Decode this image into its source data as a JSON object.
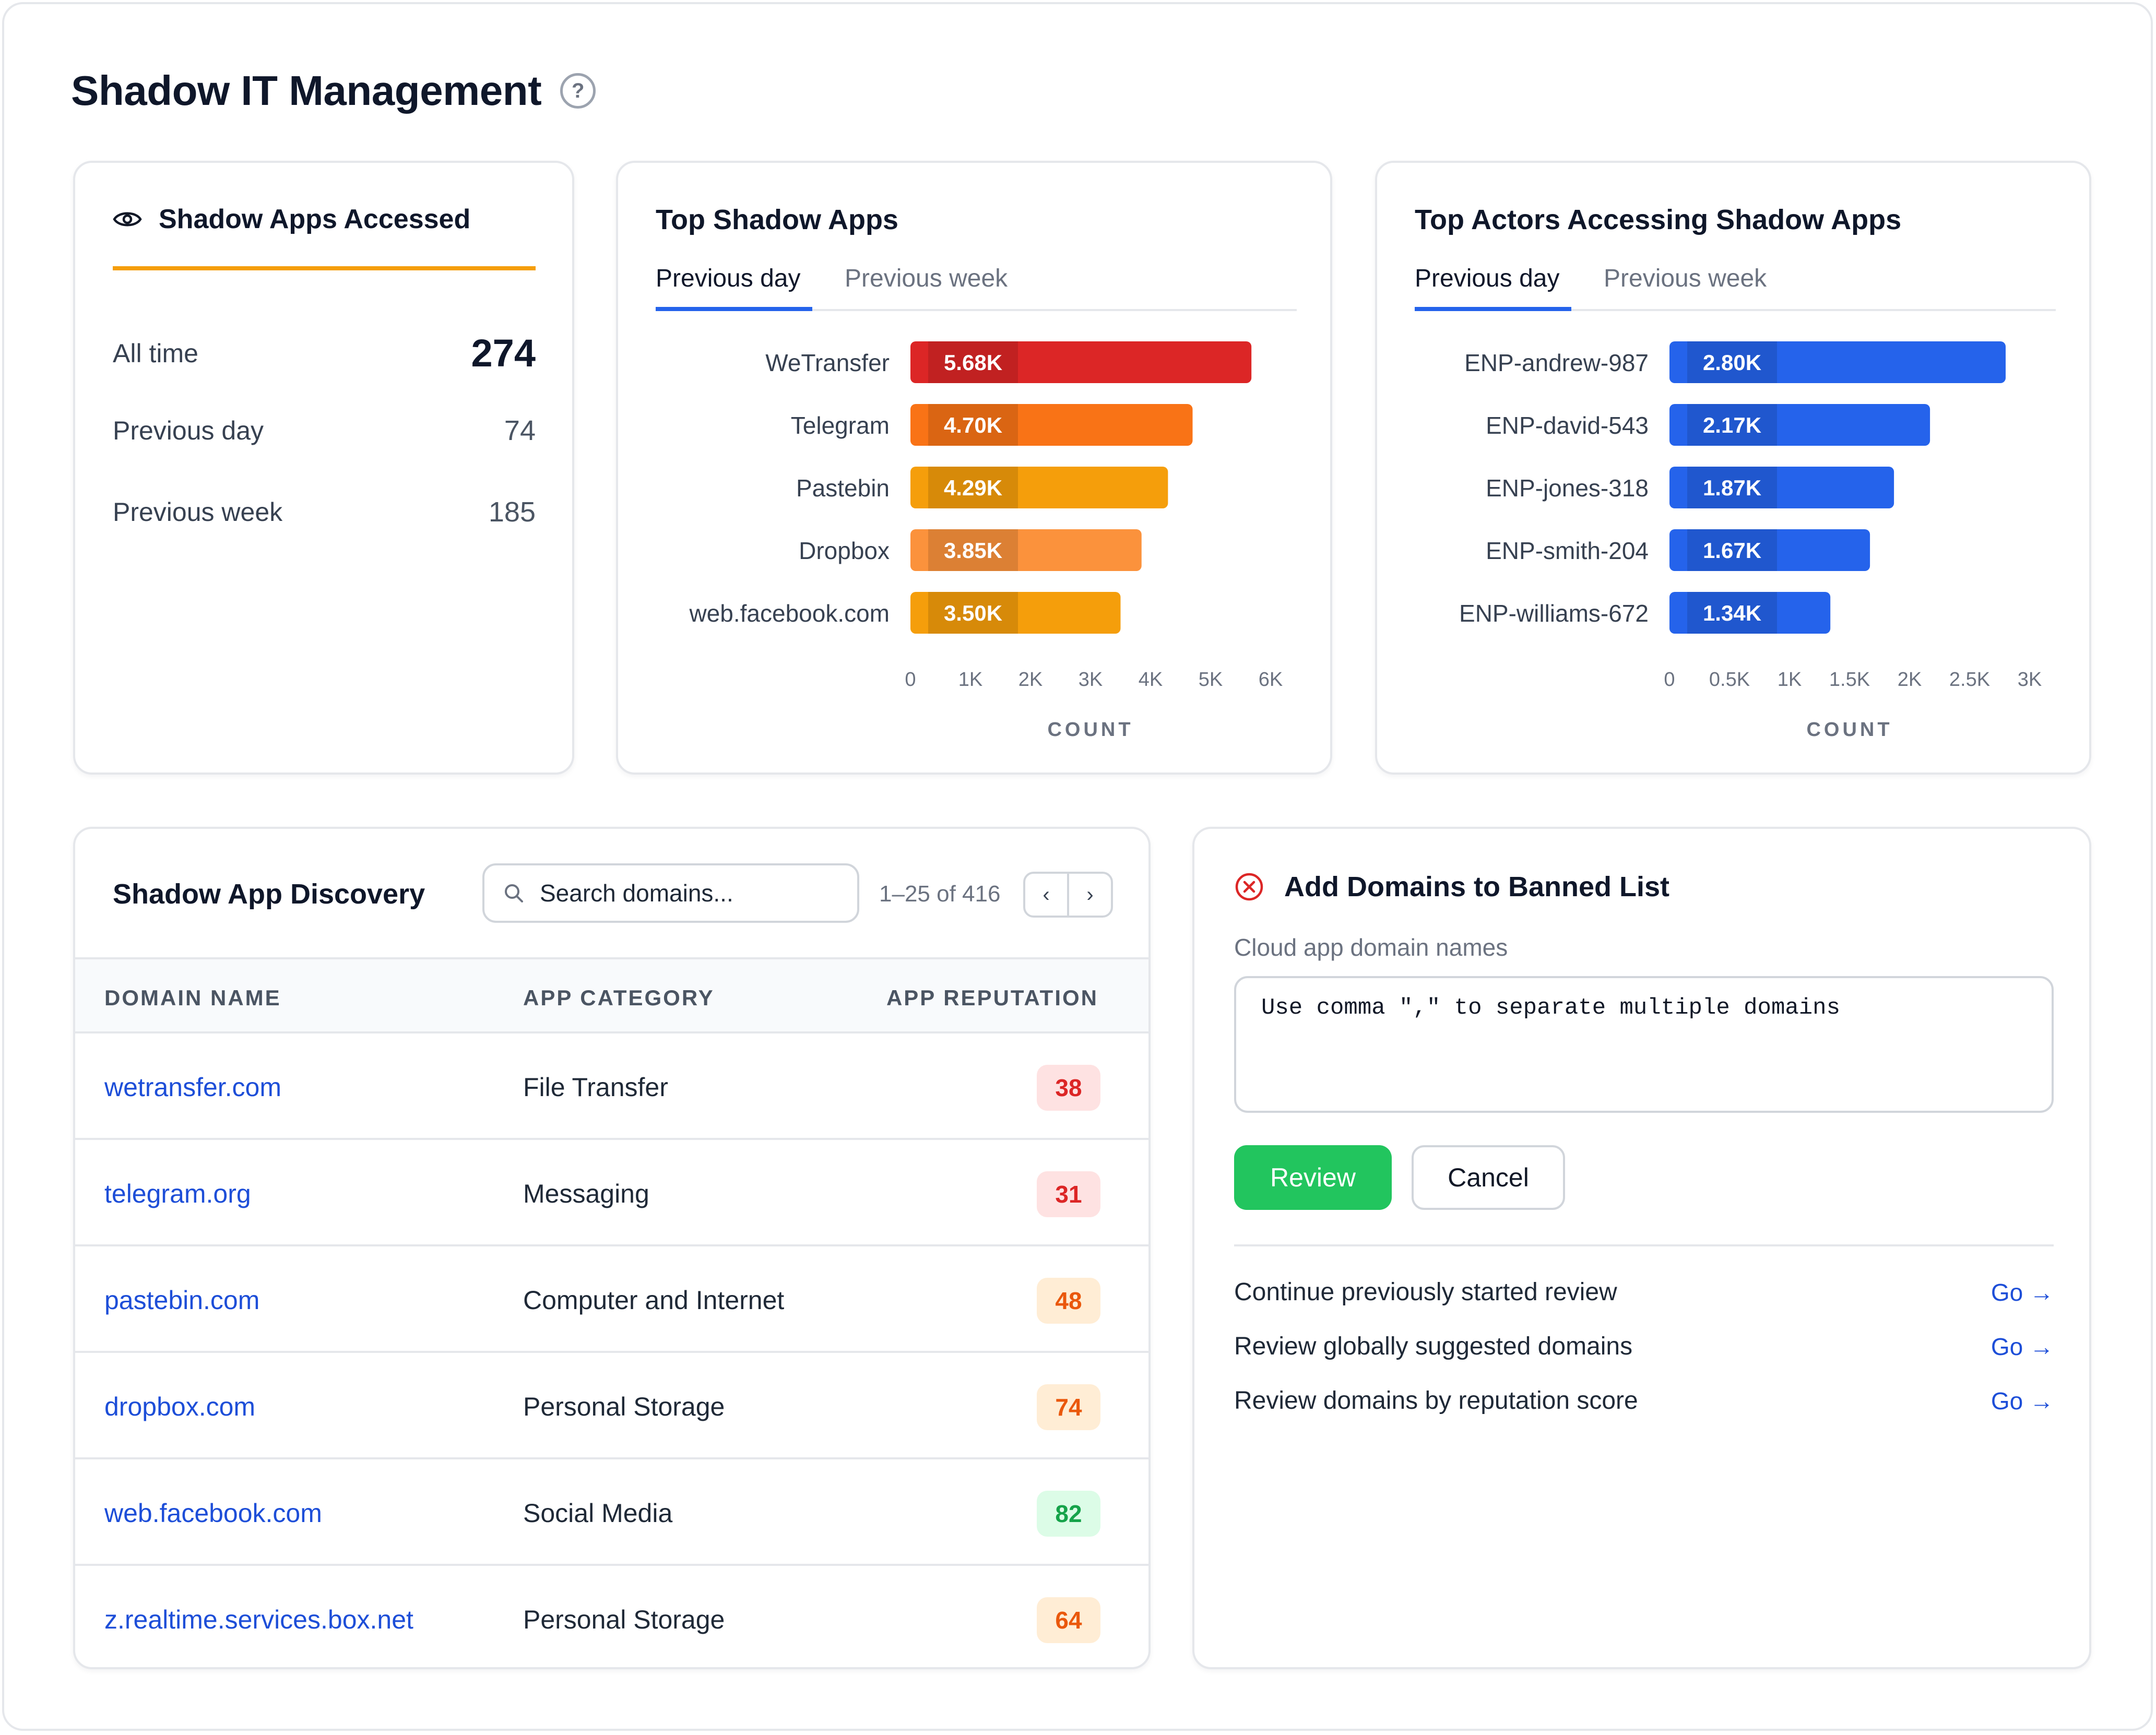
{
  "page": {
    "title": "Shadow IT Management",
    "help_symbol": "?"
  },
  "accessed": {
    "title": "Shadow Apps Accessed",
    "icon": "eye-icon",
    "accent_color": "#f59e0b",
    "stats": [
      {
        "label": "All time",
        "value": "274"
      },
      {
        "label": "Previous day",
        "value": "74"
      },
      {
        "label": "Previous week",
        "value": "185"
      }
    ]
  },
  "top_apps": {
    "title": "Top Shadow Apps",
    "tabs": [
      {
        "label": "Previous day",
        "active": true
      },
      {
        "label": "Previous week",
        "active": false
      }
    ],
    "chart_data": {
      "type": "bar",
      "orientation": "horizontal",
      "categories": [
        "WeTransfer",
        "Telegram",
        "Pastebin",
        "Dropbox",
        "web.facebook.com"
      ],
      "values": [
        5680,
        4700,
        4290,
        3850,
        3500
      ],
      "data_labels": [
        "5.68K",
        "4.70K",
        "4.29K",
        "3.85K",
        "3.50K"
      ],
      "colors": [
        "#dc2626",
        "#f97316",
        "#f59e0b",
        "#fb923c",
        "#f59e0b"
      ],
      "xlim": [
        0,
        6000
      ],
      "ticks": [
        0,
        1000,
        2000,
        3000,
        4000,
        5000,
        6000
      ],
      "tick_labels": [
        "0",
        "1K",
        "2K",
        "3K",
        "4K",
        "5K",
        "6K"
      ],
      "xlabel": "COUNT"
    }
  },
  "top_actors": {
    "title": "Top Actors Accessing Shadow Apps",
    "tabs": [
      {
        "label": "Previous day",
        "active": true
      },
      {
        "label": "Previous week",
        "active": false
      }
    ],
    "chart_data": {
      "type": "bar",
      "orientation": "horizontal",
      "categories": [
        "ENP-andrew-987",
        "ENP-david-543",
        "ENP-jones-318",
        "ENP-smith-204",
        "ENP-williams-672"
      ],
      "values": [
        2800,
        2170,
        1870,
        1670,
        1340
      ],
      "data_labels": [
        "2.80K",
        "2.17K",
        "1.87K",
        "1.67K",
        "1.34K"
      ],
      "colors": [
        "#2563eb",
        "#2563eb",
        "#2563eb",
        "#2563eb",
        "#2563eb"
      ],
      "xlim": [
        0,
        3000
      ],
      "ticks": [
        0,
        500,
        1000,
        1500,
        2000,
        2500,
        3000
      ],
      "tick_labels": [
        "0",
        "0.5K",
        "1K",
        "1.5K",
        "2K",
        "2.5K",
        "3K"
      ],
      "xlabel": "COUNT"
    }
  },
  "discovery": {
    "title": "Shadow App Discovery",
    "search": {
      "placeholder": "Search domains...",
      "value": ""
    },
    "pager": {
      "text": "1–25 of 416",
      "prev": "‹",
      "next": "›"
    },
    "columns": [
      "DOMAIN NAME",
      "APP CATEGORY",
      "APP REPUTATION"
    ],
    "rows": [
      {
        "domain": "wetransfer.com",
        "category": "File Transfer",
        "reputation": "38",
        "rep_color": "#dc2626",
        "rep_bg": "#fee2e2"
      },
      {
        "domain": "telegram.org",
        "category": "Messaging",
        "reputation": "31",
        "rep_color": "#dc2626",
        "rep_bg": "#fee2e2"
      },
      {
        "domain": "pastebin.com",
        "category": "Computer and Internet",
        "reputation": "48",
        "rep_color": "#ea580c",
        "rep_bg": "#ffedd5"
      },
      {
        "domain": "dropbox.com",
        "category": "Personal Storage",
        "reputation": "74",
        "rep_color": "#ea580c",
        "rep_bg": "#ffedd5"
      },
      {
        "domain": "web.facebook.com",
        "category": "Social Media",
        "reputation": "82",
        "rep_color": "#16a34a",
        "rep_bg": "#dcfce7"
      },
      {
        "domain": "z.realtime.services.box.net",
        "category": "Personal Storage",
        "reputation": "64",
        "rep_color": "#ea580c",
        "rep_bg": "#ffedd5"
      }
    ]
  },
  "banned": {
    "title": "Add Domains to Banned List",
    "icon": "x-circle-icon",
    "field_label": "Cloud app domain names",
    "placeholder": "Use comma \",\" to separate multiple domains",
    "review_label": "Review",
    "cancel_label": "Cancel",
    "links": [
      {
        "label": "Continue previously started review",
        "action": "Go →"
      },
      {
        "label": "Review globally suggested domains",
        "action": "Go →"
      },
      {
        "label": "Review domains by reputation score",
        "action": "Go →"
      }
    ]
  }
}
